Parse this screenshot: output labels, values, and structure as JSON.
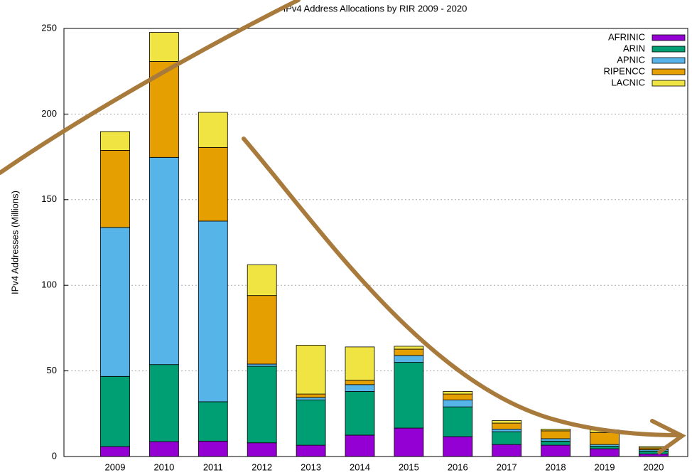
{
  "chart_data": {
    "type": "bar",
    "stacked": true,
    "title": "IPv4 Address Allocations by RIR 2009 - 2020",
    "y_label": "IPv4 Addresses (Millions)",
    "categories": [
      "2009",
      "2010",
      "2011",
      "2012",
      "2013",
      "2014",
      "2015",
      "2016",
      "2017",
      "2018",
      "2019",
      "2020"
    ],
    "series": [
      {
        "name": "AFRINIC",
        "color": "#9400d3",
        "values": [
          5.8,
          8.7,
          9,
          8,
          6.6,
          12.5,
          16.6,
          11.6,
          7,
          6.6,
          4.5,
          1.5
        ]
      },
      {
        "name": "ARIN",
        "color": "#009e73",
        "values": [
          41,
          45,
          23,
          44.7,
          26.4,
          25.5,
          38.4,
          17.4,
          7.5,
          2.4,
          1.5,
          1.7
        ]
      },
      {
        "name": "APNIC",
        "color": "#56b4e9",
        "values": [
          87,
          121,
          105.5,
          1.3,
          1.5,
          4,
          4,
          4,
          1.5,
          1.4,
          1,
          0.8
        ]
      },
      {
        "name": "RIPENCC",
        "color": "#e69f00",
        "values": [
          45,
          56,
          43,
          40,
          2,
          2.5,
          3.7,
          3.5,
          3.5,
          4.6,
          7,
          1
        ]
      },
      {
        "name": "LACNIC",
        "color": "#f0e442",
        "values": [
          11,
          17,
          20.5,
          18,
          28.5,
          19.5,
          1.7,
          1.5,
          1.5,
          1,
          1.5,
          0.8
        ]
      }
    ],
    "ylim": [
      0,
      250
    ],
    "yticks": [
      0,
      50,
      100,
      150,
      200,
      250
    ],
    "grid": true,
    "legend": "top-right"
  }
}
